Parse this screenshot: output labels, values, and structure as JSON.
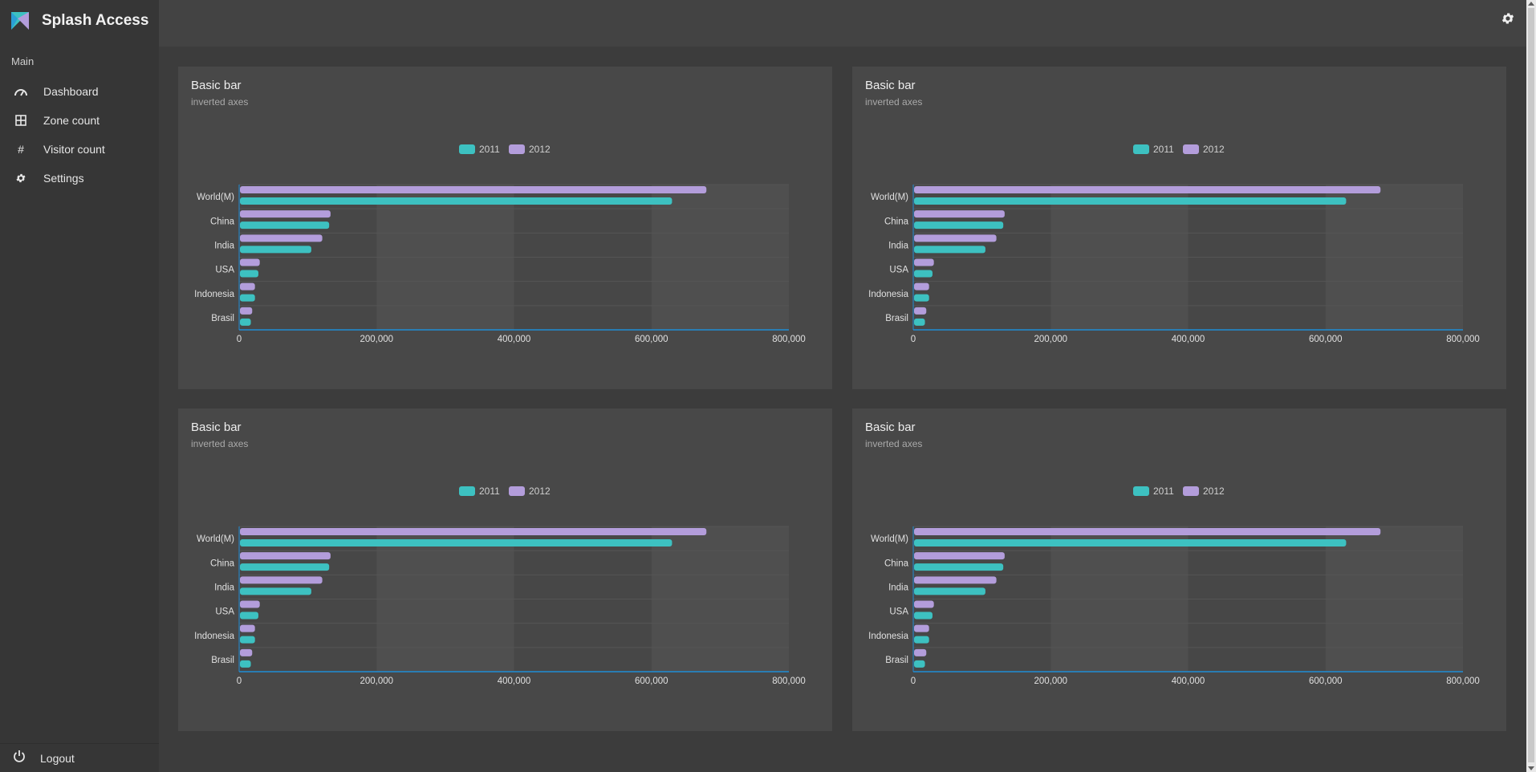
{
  "app": {
    "title": "Splash Access"
  },
  "sidebar": {
    "section_label": "Main",
    "items": [
      {
        "label": "Dashboard",
        "icon": "dashboard-gauge-icon"
      },
      {
        "label": "Zone count",
        "icon": "zone-grid-icon"
      },
      {
        "label": "Visitor count",
        "icon": "hash-icon"
      },
      {
        "label": "Settings",
        "icon": "gear-icon"
      }
    ],
    "logout_label": "Logout"
  },
  "topbar": {
    "settings_icon": "gear-icon"
  },
  "colors": {
    "series_2011": "#3dc1c1",
    "series_2012": "#b39ddb",
    "axis": "#1f8dd6"
  },
  "panels": [
    {
      "title": "Basic bar",
      "subtitle": "inverted axes"
    },
    {
      "title": "Basic bar",
      "subtitle": "inverted axes"
    },
    {
      "title": "Basic bar",
      "subtitle": "inverted axes"
    },
    {
      "title": "Basic bar",
      "subtitle": "inverted axes"
    }
  ],
  "chart_data": [
    {
      "type": "bar",
      "orientation": "horizontal",
      "title": "Basic bar",
      "subtitle": "inverted axes",
      "categories": [
        "World(M)",
        "China",
        "India",
        "USA",
        "Indonesia",
        "Brasil"
      ],
      "series": [
        {
          "name": "2011",
          "values": [
            630000,
            131000,
            105000,
            28000,
            23000,
            17000
          ]
        },
        {
          "name": "2012",
          "values": [
            680000,
            133000,
            121000,
            30000,
            23000,
            19000
          ]
        }
      ],
      "xlim": [
        0,
        800000
      ],
      "ticks": [
        "0",
        "200,000",
        "400,000",
        "600,000",
        "800,000"
      ],
      "legend": "top-center"
    },
    {
      "type": "bar",
      "orientation": "horizontal",
      "title": "Basic bar",
      "subtitle": "inverted axes",
      "categories": [
        "World(M)",
        "China",
        "India",
        "USA",
        "Indonesia",
        "Brasil"
      ],
      "series": [
        {
          "name": "2011",
          "values": [
            630000,
            131000,
            105000,
            28000,
            23000,
            17000
          ]
        },
        {
          "name": "2012",
          "values": [
            680000,
            133000,
            121000,
            30000,
            23000,
            19000
          ]
        }
      ],
      "xlim": [
        0,
        800000
      ],
      "ticks": [
        "0",
        "200,000",
        "400,000",
        "600,000",
        "800,000"
      ],
      "legend": "top-center"
    },
    {
      "type": "bar",
      "orientation": "horizontal",
      "title": "Basic bar",
      "subtitle": "inverted axes",
      "categories": [
        "World(M)",
        "China",
        "India",
        "USA",
        "Indonesia",
        "Brasil"
      ],
      "series": [
        {
          "name": "2011",
          "values": [
            630000,
            131000,
            105000,
            28000,
            23000,
            17000
          ]
        },
        {
          "name": "2012",
          "values": [
            680000,
            133000,
            121000,
            30000,
            23000,
            19000
          ]
        }
      ],
      "xlim": [
        0,
        800000
      ],
      "ticks": [
        "0",
        "200,000",
        "400,000",
        "600,000",
        "800,000"
      ],
      "legend": "top-center"
    },
    {
      "type": "bar",
      "orientation": "horizontal",
      "title": "Basic bar",
      "subtitle": "inverted axes",
      "categories": [
        "World(M)",
        "China",
        "India",
        "USA",
        "Indonesia",
        "Brasil"
      ],
      "series": [
        {
          "name": "2011",
          "values": [
            630000,
            131000,
            105000,
            28000,
            23000,
            17000
          ]
        },
        {
          "name": "2012",
          "values": [
            680000,
            133000,
            121000,
            30000,
            23000,
            19000
          ]
        }
      ],
      "xlim": [
        0,
        800000
      ],
      "ticks": [
        "0",
        "200,000",
        "400,000",
        "600,000",
        "800,000"
      ],
      "legend": "top-center"
    }
  ]
}
